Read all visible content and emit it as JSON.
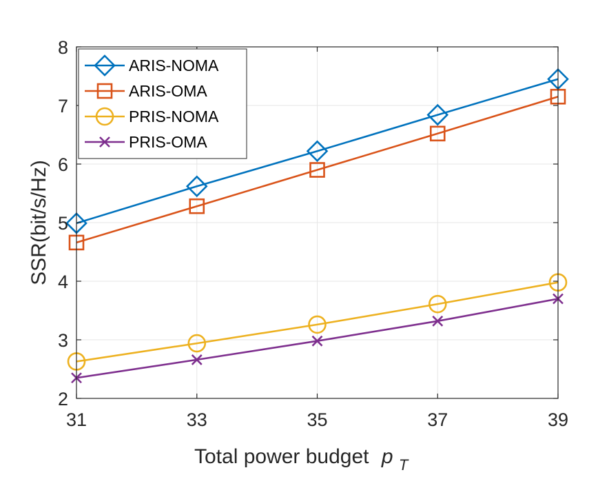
{
  "chart_data": {
    "type": "line",
    "x": [
      31,
      33,
      35,
      37,
      39
    ],
    "xticks": [
      31,
      33,
      35,
      37,
      39
    ],
    "yticks": [
      2,
      3,
      4,
      5,
      6,
      7,
      8
    ],
    "xlim": [
      31,
      39
    ],
    "ylim": [
      2,
      8
    ],
    "xlabel": "Total power budget",
    "xlabel_symbol": "p",
    "xlabel_subscript": "T",
    "ylabel": "SSR(bit/s/Hz)",
    "grid": true,
    "legend_position": "top-left",
    "series": [
      {
        "name": "ARIS-NOMA",
        "marker": "diamond",
        "color": "#0072BD",
        "values": [
          4.99,
          5.62,
          6.22,
          6.84,
          7.45
        ]
      },
      {
        "name": "ARIS-OMA",
        "marker": "square",
        "color": "#D95319",
        "values": [
          4.66,
          5.28,
          5.9,
          6.52,
          7.15
        ]
      },
      {
        "name": "PRIS-NOMA",
        "marker": "circle",
        "color": "#EDB120",
        "values": [
          2.63,
          2.94,
          3.26,
          3.61,
          3.98
        ]
      },
      {
        "name": "PRIS-OMA",
        "marker": "x",
        "color": "#7E2F8E",
        "values": [
          2.35,
          2.66,
          2.98,
          3.32,
          3.7
        ]
      }
    ]
  }
}
